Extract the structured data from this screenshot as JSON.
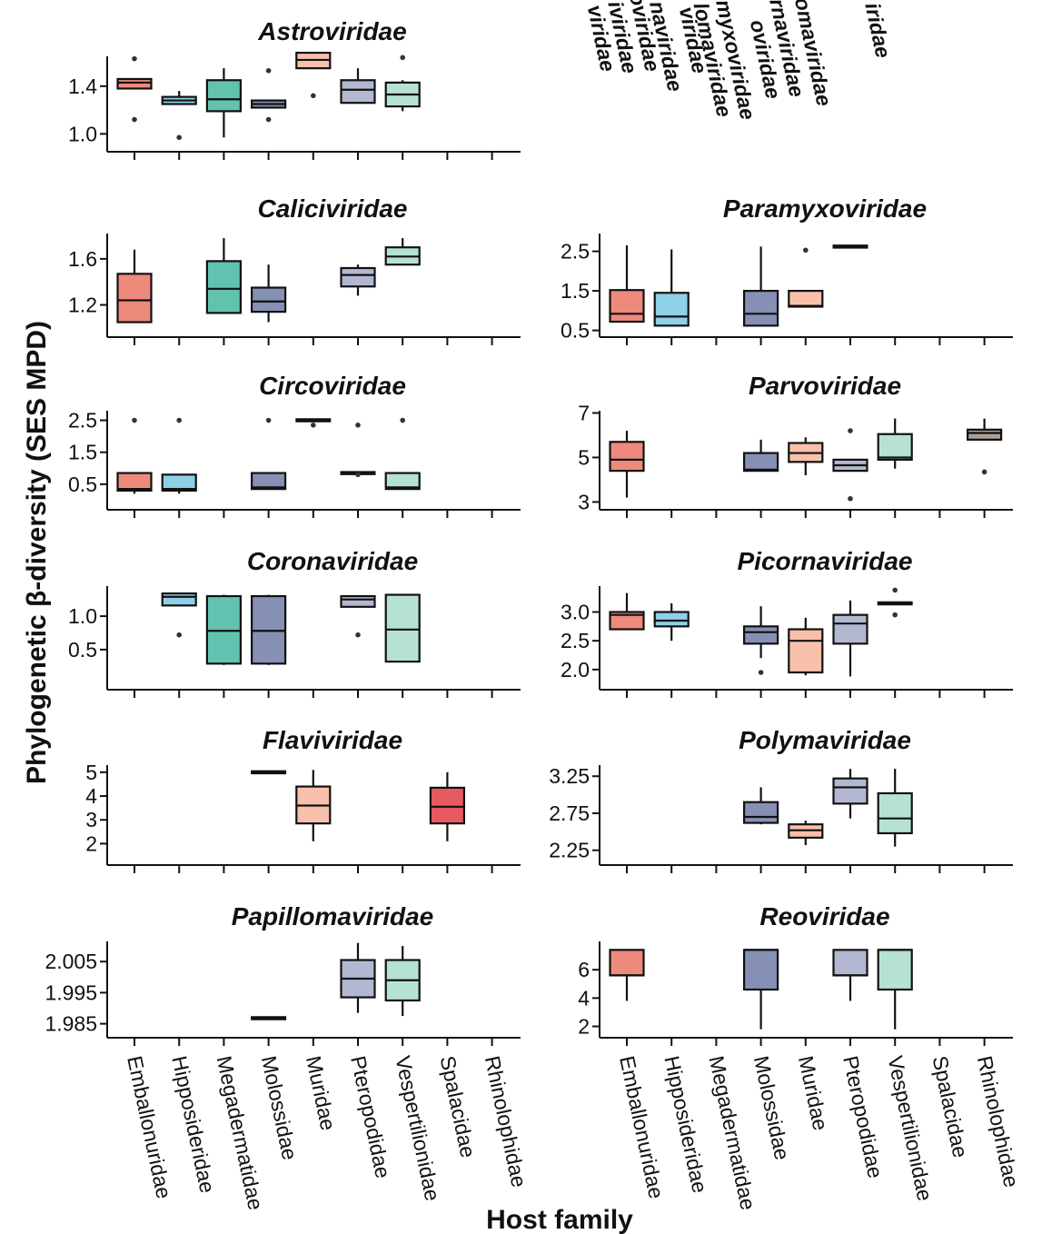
{
  "chart_data": {
    "type": "boxplot",
    "ylabel": "Phylogenetic β-diversity (SES MPD)",
    "xlabel": "Host family",
    "host_families": [
      "Emballonuridae",
      "Hipposideridae",
      "Megadermatidae",
      "Molossidae",
      "Muridae",
      "Pteropodidae",
      "Vespertilionidae",
      "Spalacidae",
      "Rhinolophidae"
    ],
    "top_labels": [
      "viridae",
      "iviridae",
      "oviridae",
      "naviridae",
      "viridae",
      "lomaviridae",
      "myxoviridae",
      "oviridae",
      "rnaviridae",
      "omaviridae",
      "iridae"
    ],
    "colors": {
      "Emballonuridae": "#ee8a7c",
      "Hipposideridae": "#8ed0e6",
      "Megadermatidae": "#62c2b0",
      "Molossidae": "#8690b4",
      "Muridae": "#f8c0ab",
      "Pteropodidae": "#b2b8d2",
      "Vespertilionidae": "#b6e2d6",
      "Spalacidae": "#e6595e",
      "Rhinolophidae": "#b0a196"
    },
    "panels": [
      {
        "title": "Astroviridae",
        "ylim": [
          0.85,
          1.65
        ],
        "yticks": [
          1.0,
          1.4
        ],
        "ytick_labels": [
          "1.0",
          "1.4"
        ],
        "boxes": [
          {
            "family": "Emballonuridae",
            "q1": 1.38,
            "median": 1.43,
            "q3": 1.46,
            "whislo": 1.38,
            "whishi": 1.46,
            "outliers": [
              1.63,
              1.12
            ]
          },
          {
            "family": "Hipposideridae",
            "q1": 1.25,
            "median": 1.28,
            "q3": 1.31,
            "whislo": 1.25,
            "whishi": 1.36,
            "outliers": [
              0.97
            ]
          },
          {
            "family": "Megadermatidae",
            "q1": 1.19,
            "median": 1.29,
            "q3": 1.45,
            "whislo": 0.97,
            "whishi": 1.55,
            "outliers": []
          },
          {
            "family": "Molossidae",
            "q1": 1.22,
            "median": 1.25,
            "q3": 1.28,
            "whislo": 1.22,
            "whishi": 1.28,
            "outliers": [
              1.53,
              1.12
            ]
          },
          {
            "family": "Muridae",
            "q1": 1.55,
            "median": 1.62,
            "q3": 1.68,
            "whislo": 1.55,
            "whishi": 1.68,
            "outliers": [
              1.32
            ]
          },
          {
            "family": "Pteropodidae",
            "q1": 1.26,
            "median": 1.37,
            "q3": 1.45,
            "whislo": 1.26,
            "whishi": 1.55,
            "outliers": []
          },
          {
            "family": "Vespertilionidae",
            "q1": 1.23,
            "median": 1.33,
            "q3": 1.43,
            "whislo": 1.19,
            "whishi": 1.45,
            "outliers": [
              1.64
            ]
          }
        ]
      },
      {
        "title": "Caliciviridae",
        "ylim": [
          0.92,
          1.82
        ],
        "yticks": [
          1.2,
          1.6
        ],
        "ytick_labels": [
          "1.2",
          "1.6"
        ],
        "boxes": [
          {
            "family": "Emballonuridae",
            "q1": 1.05,
            "median": 1.24,
            "q3": 1.47,
            "whislo": 1.05,
            "whishi": 1.68,
            "outliers": []
          },
          {
            "family": "Megadermatidae",
            "q1": 1.13,
            "median": 1.34,
            "q3": 1.58,
            "whislo": 1.13,
            "whishi": 1.78,
            "outliers": []
          },
          {
            "family": "Molossidae",
            "q1": 1.14,
            "median": 1.23,
            "q3": 1.35,
            "whislo": 1.05,
            "whishi": 1.55,
            "outliers": []
          },
          {
            "family": "Pteropodidae",
            "q1": 1.36,
            "median": 1.46,
            "q3": 1.52,
            "whislo": 1.28,
            "whishi": 1.55,
            "outliers": []
          },
          {
            "family": "Vespertilionidae",
            "q1": 1.55,
            "median": 1.62,
            "q3": 1.7,
            "whislo": 1.55,
            "whishi": 1.78,
            "outliers": []
          }
        ]
      },
      {
        "title": "Circoviridae",
        "ylim": [
          -0.3,
          2.8
        ],
        "yticks": [
          0.5,
          1.5,
          2.5
        ],
        "ytick_labels": [
          "0.5",
          "1.5",
          "2.5"
        ],
        "boxes": [
          {
            "family": "Emballonuridae",
            "q1": 0.3,
            "median": 0.35,
            "q3": 0.85,
            "whislo": 0.2,
            "whishi": 0.85,
            "outliers": [
              2.5
            ]
          },
          {
            "family": "Hipposideridae",
            "q1": 0.3,
            "median": 0.35,
            "q3": 0.8,
            "whislo": 0.2,
            "whishi": 0.8,
            "outliers": [
              2.5
            ]
          },
          {
            "family": "Molossidae",
            "q1": 0.35,
            "median": 0.4,
            "q3": 0.85,
            "whislo": 0.35,
            "whishi": 0.85,
            "outliers": [
              2.5
            ]
          },
          {
            "family": "Muridae",
            "q1": 2.5,
            "median": 2.5,
            "q3": 2.5,
            "whislo": 2.5,
            "whishi": 2.5,
            "outliers": [
              2.35
            ]
          },
          {
            "family": "Pteropodidae",
            "q1": 0.85,
            "median": 0.85,
            "q3": 0.85,
            "whislo": 0.85,
            "whishi": 0.85,
            "outliers": [
              2.35,
              0.8
            ]
          },
          {
            "family": "Vespertilionidae",
            "q1": 0.35,
            "median": 0.4,
            "q3": 0.85,
            "whislo": 0.35,
            "whishi": 0.85,
            "outliers": [
              2.5
            ]
          }
        ]
      },
      {
        "title": "Coronaviridae",
        "ylim": [
          -0.1,
          1.45
        ],
        "yticks": [
          0.5,
          1.0
        ],
        "ytick_labels": [
          "0.5",
          "1.0"
        ],
        "boxes": [
          {
            "family": "Hipposideridae",
            "q1": 1.16,
            "median": 1.29,
            "q3": 1.34,
            "whislo": 1.16,
            "whishi": 1.34,
            "outliers": [
              0.72
            ]
          },
          {
            "family": "Megadermatidae",
            "q1": 0.29,
            "median": 0.78,
            "q3": 1.3,
            "whislo": 0.27,
            "whishi": 1.32,
            "outliers": []
          },
          {
            "family": "Molossidae",
            "q1": 0.29,
            "median": 0.78,
            "q3": 1.3,
            "whislo": 0.27,
            "whishi": 1.32,
            "outliers": []
          },
          {
            "family": "Pteropodidae",
            "q1": 1.14,
            "median": 1.25,
            "q3": 1.3,
            "whislo": 1.14,
            "whishi": 1.3,
            "outliers": [
              0.72
            ]
          },
          {
            "family": "Vespertilionidae",
            "q1": 0.32,
            "median": 0.8,
            "q3": 1.32,
            "whislo": 0.32,
            "whishi": 1.32,
            "outliers": []
          }
        ]
      },
      {
        "title": "Flaviviridae",
        "ylim": [
          1.1,
          5.3
        ],
        "yticks": [
          2,
          3,
          4,
          5
        ],
        "ytick_labels": [
          "2",
          "3",
          "4",
          "5"
        ],
        "boxes": [
          {
            "family": "Molossidae",
            "q1": 5.0,
            "median": 5.0,
            "q3": 5.0,
            "whislo": 5.0,
            "whishi": 5.0,
            "outliers": []
          },
          {
            "family": "Muridae",
            "q1": 2.85,
            "median": 3.6,
            "q3": 4.4,
            "whislo": 2.1,
            "whishi": 5.1,
            "outliers": []
          },
          {
            "family": "Spalacidae",
            "q1": 2.85,
            "median": 3.55,
            "q3": 4.35,
            "whislo": 2.1,
            "whishi": 5.0,
            "outliers": []
          }
        ]
      },
      {
        "title": "Papillomaviridae",
        "ylim": [
          1.9805,
          2.0115
        ],
        "yticks": [
          1.985,
          1.995,
          2.005
        ],
        "ytick_labels": [
          "1.985",
          "1.995",
          "2.005"
        ],
        "boxes": [
          {
            "family": "Molossidae",
            "q1": 1.9868,
            "median": 1.9868,
            "q3": 1.9868,
            "whislo": 1.9868,
            "whishi": 1.9868,
            "outliers": []
          },
          {
            "family": "Pteropodidae",
            "q1": 1.9935,
            "median": 1.9995,
            "q3": 2.0055,
            "whislo": 1.9885,
            "whishi": 2.011,
            "outliers": []
          },
          {
            "family": "Vespertilionidae",
            "q1": 1.9925,
            "median": 1.999,
            "q3": 2.0055,
            "whislo": 1.9875,
            "whishi": 2.01,
            "outliers": []
          }
        ]
      },
      {
        "title": "Paramyxoviridae",
        "ylim": [
          0.33,
          2.95
        ],
        "yticks": [
          0.5,
          1.5,
          2.5
        ],
        "ytick_labels": [
          "0.5",
          "1.5",
          "2.5"
        ],
        "boxes": [
          {
            "family": "Emballonuridae",
            "q1": 0.72,
            "median": 0.92,
            "q3": 1.52,
            "whislo": 0.72,
            "whishi": 2.65,
            "outliers": []
          },
          {
            "family": "Hipposideridae",
            "q1": 0.62,
            "median": 0.85,
            "q3": 1.45,
            "whislo": 0.62,
            "whishi": 2.55,
            "outliers": []
          },
          {
            "family": "Molossidae",
            "q1": 0.62,
            "median": 0.92,
            "q3": 1.5,
            "whislo": 0.62,
            "whishi": 2.62,
            "outliers": []
          },
          {
            "family": "Muridae",
            "q1": 1.1,
            "median": 1.12,
            "q3": 1.5,
            "whislo": 1.1,
            "whishi": 1.5,
            "outliers": [
              2.53
            ]
          },
          {
            "family": "Pteropodidae",
            "q1": 2.62,
            "median": 2.62,
            "q3": 2.62,
            "whislo": 2.62,
            "whishi": 2.62,
            "outliers": []
          }
        ]
      },
      {
        "title": "Parvoviridae",
        "ylim": [
          2.65,
          7.1
        ],
        "yticks": [
          3,
          5,
          7
        ],
        "ytick_labels": [
          "3",
          "5",
          "7"
        ],
        "boxes": [
          {
            "family": "Emballonuridae",
            "q1": 4.4,
            "median": 4.9,
            "q3": 5.7,
            "whislo": 3.2,
            "whishi": 6.2,
            "outliers": []
          },
          {
            "family": "Molossidae",
            "q1": 4.4,
            "median": 4.45,
            "q3": 5.2,
            "whislo": 4.4,
            "whishi": 5.8,
            "outliers": []
          },
          {
            "family": "Muridae",
            "q1": 4.8,
            "median": 5.2,
            "q3": 5.65,
            "whislo": 4.2,
            "whishi": 5.9,
            "outliers": []
          },
          {
            "family": "Pteropodidae",
            "q1": 4.4,
            "median": 4.65,
            "q3": 4.9,
            "whislo": 4.4,
            "whishi": 4.9,
            "outliers": [
              6.2,
              3.15
            ]
          },
          {
            "family": "Vespertilionidae",
            "q1": 4.9,
            "median": 5.0,
            "q3": 6.05,
            "whislo": 4.5,
            "whishi": 6.75,
            "outliers": []
          },
          {
            "family": "Rhinolophidae",
            "q1": 5.8,
            "median": 6.1,
            "q3": 6.25,
            "whislo": 5.8,
            "whishi": 6.75,
            "outliers": [
              4.35
            ]
          }
        ]
      },
      {
        "title": "Picornaviridae",
        "ylim": [
          1.65,
          3.45
        ],
        "yticks": [
          2.0,
          2.5,
          3.0
        ],
        "ytick_labels": [
          "2.0",
          "2.5",
          "3.0"
        ],
        "boxes": [
          {
            "family": "Emballonuridae",
            "q1": 2.7,
            "median": 2.95,
            "q3": 3.0,
            "whislo": 2.7,
            "whishi": 3.33,
            "outliers": []
          },
          {
            "family": "Hipposideridae",
            "q1": 2.75,
            "median": 2.85,
            "q3": 3.0,
            "whislo": 2.5,
            "whishi": 3.15,
            "outliers": []
          },
          {
            "family": "Molossidae",
            "q1": 2.45,
            "median": 2.65,
            "q3": 2.75,
            "whislo": 2.2,
            "whishi": 3.1,
            "outliers": [
              1.95
            ]
          },
          {
            "family": "Muridae",
            "q1": 1.95,
            "median": 2.5,
            "q3": 2.7,
            "whislo": 1.9,
            "whishi": 2.9,
            "outliers": []
          },
          {
            "family": "Pteropodidae",
            "q1": 2.45,
            "median": 2.8,
            "q3": 2.95,
            "whislo": 1.88,
            "whishi": 3.2,
            "outliers": []
          },
          {
            "family": "Vespertilionidae",
            "q1": 3.15,
            "median": 3.15,
            "q3": 3.15,
            "whislo": 3.15,
            "whishi": 3.15,
            "outliers": [
              3.38,
              2.95
            ]
          }
        ]
      },
      {
        "title": "Polymaviridae",
        "ylim": [
          2.05,
          3.4
        ],
        "yticks": [
          2.25,
          2.75,
          3.25
        ],
        "ytick_labels": [
          "2.25",
          "2.75",
          "3.25"
        ],
        "boxes": [
          {
            "family": "Molossidae",
            "q1": 2.62,
            "median": 2.7,
            "q3": 2.9,
            "whislo": 2.6,
            "whishi": 3.1,
            "outliers": []
          },
          {
            "family": "Muridae",
            "q1": 2.42,
            "median": 2.52,
            "q3": 2.6,
            "whislo": 2.32,
            "whishi": 2.65,
            "outliers": []
          },
          {
            "family": "Pteropodidae",
            "q1": 2.88,
            "median": 3.1,
            "q3": 3.22,
            "whislo": 2.68,
            "whishi": 3.35,
            "outliers": []
          },
          {
            "family": "Vespertilionidae",
            "q1": 2.48,
            "median": 2.68,
            "q3": 3.02,
            "whislo": 2.3,
            "whishi": 3.35,
            "outliers": []
          }
        ]
      },
      {
        "title": "Reoviridae",
        "ylim": [
          1.2,
          8.0
        ],
        "yticks": [
          2,
          4,
          6
        ],
        "ytick_labels": [
          "2",
          "4",
          "6"
        ],
        "boxes": [
          {
            "family": "Emballonuridae",
            "q1": 5.6,
            "median": 5.6,
            "q3": 7.4,
            "whislo": 3.8,
            "whishi": 7.4,
            "outliers": []
          },
          {
            "family": "Molossidae",
            "q1": 4.6,
            "median": 7.4,
            "q3": 7.4,
            "whislo": 1.8,
            "whishi": 7.4,
            "outliers": []
          },
          {
            "family": "Pteropodidae",
            "q1": 5.6,
            "median": 5.6,
            "q3": 7.4,
            "whislo": 3.8,
            "whishi": 7.4,
            "outliers": []
          },
          {
            "family": "Vespertilionidae",
            "q1": 4.6,
            "median": 7.4,
            "q3": 7.4,
            "whislo": 1.8,
            "whishi": 7.4,
            "outliers": []
          }
        ]
      }
    ]
  }
}
